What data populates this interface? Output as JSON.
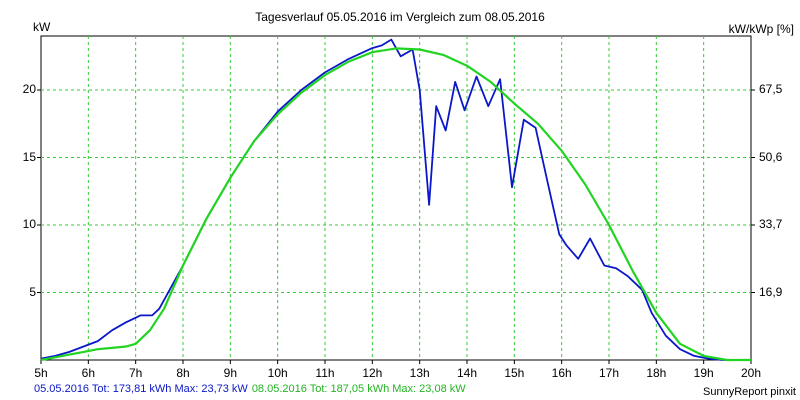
{
  "chart_data": {
    "type": "line",
    "title": "Tagesverlauf 05.05.2016 im Vergleich zum 08.05.2016",
    "ylabel_left": "kW",
    "ylabel_right": "kW/kWp [%]",
    "x_ticks": [
      "5h",
      "6h",
      "7h",
      "8h",
      "9h",
      "10h",
      "11h",
      "12h",
      "13h",
      "14h",
      "15h",
      "16h",
      "17h",
      "18h",
      "19h",
      "20h"
    ],
    "xlim": [
      5,
      20
    ],
    "ylim": [
      0,
      24
    ],
    "y_ticks": [
      5,
      10,
      15,
      20
    ],
    "y_right_ticks": [
      "16,9",
      "33,7",
      "50,6",
      "67,5"
    ],
    "grid": true,
    "series": [
      {
        "name": "05.05.2016",
        "color": "#0a18c8",
        "legend": "05.05.2016 Tot: 173,81 kWh Max: 23,73 kW",
        "x": [
          5.0,
          5.3,
          5.6,
          5.9,
          6.2,
          6.5,
          6.8,
          7.1,
          7.35,
          7.5,
          8.0,
          8.5,
          9.0,
          9.5,
          10.0,
          10.5,
          11.0,
          11.5,
          12.0,
          12.2,
          12.4,
          12.6,
          12.85,
          13.0,
          13.2,
          13.35,
          13.55,
          13.75,
          13.95,
          14.2,
          14.45,
          14.7,
          14.95,
          15.2,
          15.45,
          15.7,
          15.95,
          16.1,
          16.35,
          16.6,
          16.9,
          17.15,
          17.4,
          17.7,
          17.9,
          18.2,
          18.5,
          18.8,
          19.1,
          19.4,
          19.7,
          20.0
        ],
        "y": [
          0.1,
          0.3,
          0.6,
          1.0,
          1.4,
          2.2,
          2.8,
          3.3,
          3.3,
          3.8,
          7.0,
          10.5,
          13.5,
          16.2,
          18.4,
          20.0,
          21.3,
          22.3,
          23.1,
          23.3,
          23.73,
          22.5,
          23.0,
          20.0,
          11.5,
          18.8,
          17.0,
          20.6,
          18.5,
          21.0,
          18.8,
          20.8,
          12.8,
          17.8,
          17.2,
          13.2,
          9.3,
          8.5,
          7.5,
          9.0,
          7.0,
          6.8,
          6.2,
          5.2,
          3.5,
          1.8,
          0.8,
          0.3,
          0.1,
          0.0,
          0.0,
          0.0
        ]
      },
      {
        "name": "08.05.2016",
        "color": "#22d422",
        "legend": "08.05.2016 Tot: 187,05 kWh Max: 23,08 kW",
        "x": [
          5.0,
          5.3,
          5.6,
          5.9,
          6.2,
          6.5,
          6.8,
          7.0,
          7.3,
          7.6,
          8.0,
          8.5,
          9.0,
          9.5,
          10.0,
          10.5,
          11.0,
          11.5,
          12.0,
          12.5,
          13.0,
          13.5,
          14.0,
          14.5,
          15.0,
          15.5,
          16.0,
          16.5,
          17.0,
          17.5,
          18.0,
          18.5,
          19.0,
          19.5,
          20.0
        ],
        "y": [
          0.0,
          0.2,
          0.4,
          0.6,
          0.8,
          0.9,
          1.0,
          1.2,
          2.2,
          3.8,
          7.0,
          10.5,
          13.5,
          16.2,
          18.2,
          19.8,
          21.1,
          22.1,
          22.8,
          23.08,
          23.0,
          22.6,
          21.8,
          20.6,
          19.0,
          17.5,
          15.5,
          13.0,
          10.0,
          6.6,
          3.5,
          1.2,
          0.3,
          0.0,
          0.0
        ]
      }
    ]
  },
  "footer": {
    "credit": "SunnyReport pinxit"
  }
}
